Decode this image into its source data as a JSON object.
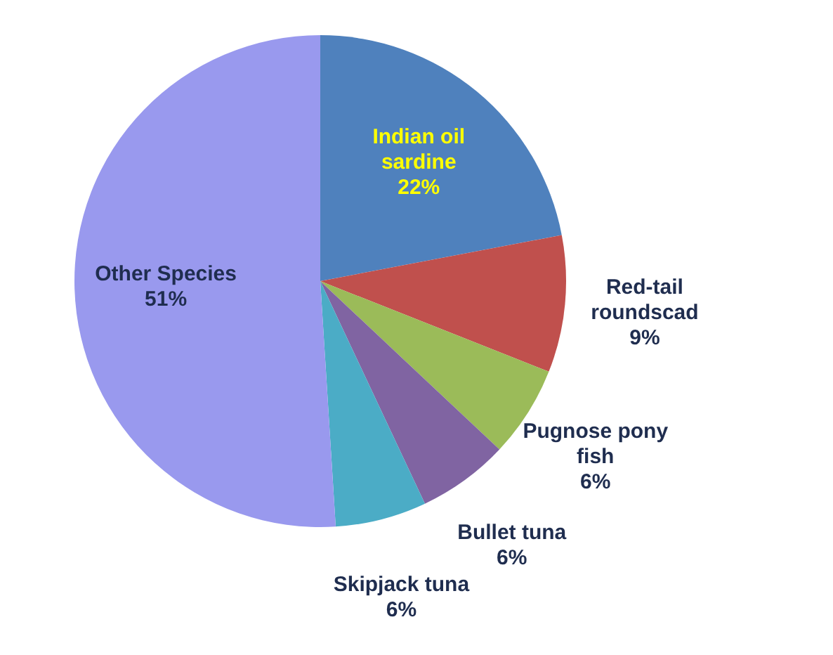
{
  "chart_data": {
    "type": "pie",
    "categories": [
      "Indian oil sardine",
      "Red-tail roundscad",
      "Pugnose pony fish",
      "Bullet tuna",
      "Skipjack tuna",
      "Other Species"
    ],
    "values": [
      22,
      9,
      6,
      6,
      6,
      51
    ],
    "colors": [
      "#4f81bd",
      "#c0504d",
      "#9bbb59",
      "#8064a2",
      "#4bacc6",
      "#9999ee"
    ],
    "value_labels": [
      "22%",
      "9%",
      "6%",
      "6%",
      "6%",
      "51%"
    ]
  }
}
